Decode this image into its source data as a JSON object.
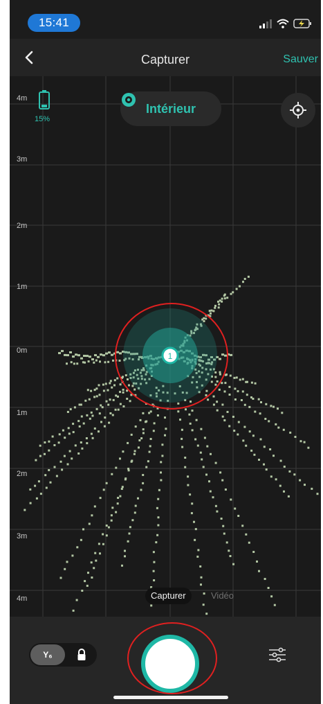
{
  "status_bar": {
    "time": "15:41"
  },
  "nav": {
    "title": "Capturer",
    "save_label": "Sauver"
  },
  "map": {
    "y_axis_labels": [
      "4m",
      "3m",
      "2m",
      "1m",
      "0m",
      "1m",
      "2m",
      "3m",
      "4m"
    ],
    "battery_percent": "15%",
    "mode_label": "Intérieur",
    "robot_marker": "1"
  },
  "capture_tabs": {
    "capture": "Capturer",
    "video": "Vidéo"
  },
  "bottom_bar": {
    "toggle_left_label": "Y₆"
  },
  "colors": {
    "accent": "#2fc2b0",
    "background": "#1a1a1a",
    "scan_points": "#b3c7a4",
    "annotation": "#e02020"
  },
  "icons": {
    "back": "chevron-left-icon",
    "signal": "signal-icon",
    "wifi": "wifi-icon",
    "battery": "battery-charging-icon",
    "mode": "camera-eye-icon",
    "locate": "crosshair-icon",
    "lock": "lock-icon",
    "settings": "sliders-icon"
  }
}
